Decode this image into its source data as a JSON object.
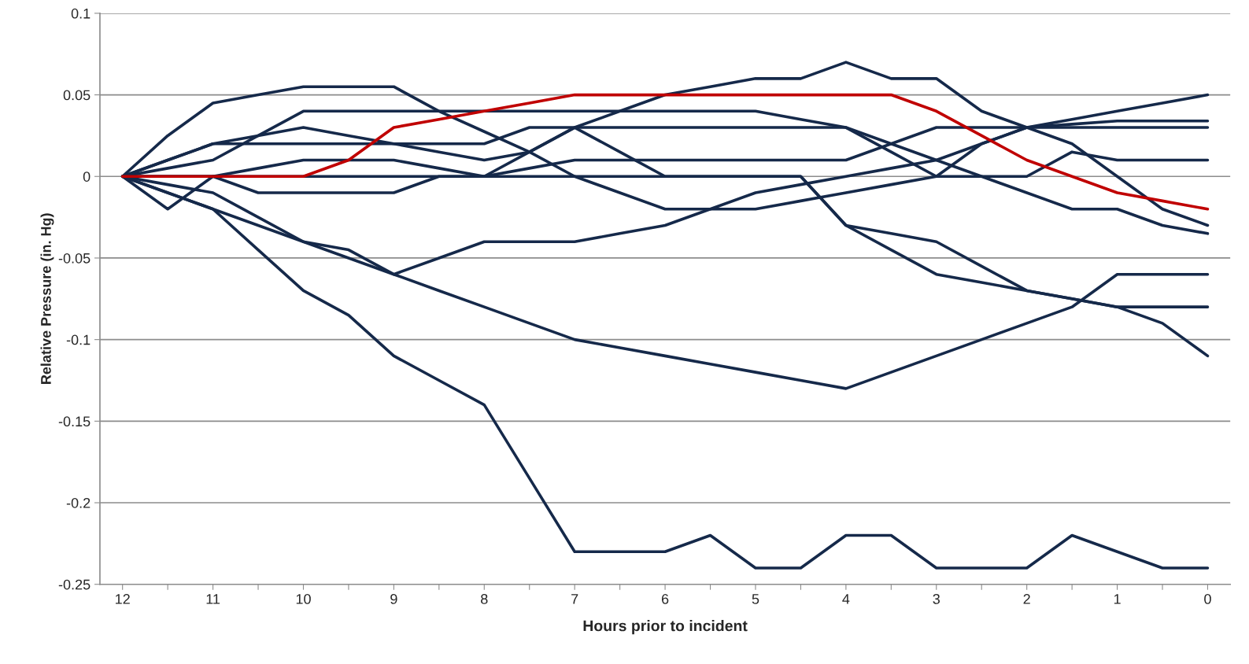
{
  "chart_data": {
    "type": "line",
    "xlabel": "Hours prior to incident",
    "ylabel": "Relative Pressure (in. Hg)",
    "categories": [
      "12",
      null,
      "11",
      null,
      "10",
      null,
      "9",
      null,
      "8",
      null,
      "7",
      null,
      "6",
      null,
      "5",
      null,
      "4",
      null,
      "3",
      null,
      "2",
      null,
      "1",
      null,
      "0"
    ],
    "ylim": [
      -0.25,
      0.1
    ],
    "yticks": [
      -0.25,
      -0.2,
      -0.15,
      -0.1,
      -0.05,
      0,
      0.05,
      0.1
    ],
    "grid": "y",
    "marker": "none",
    "line_style": "solid",
    "series": [
      {
        "color": "#15294a",
        "values": [
          0,
          -0.01,
          -0.02,
          -0.045,
          -0.07,
          -0.085,
          -0.11,
          -0.125,
          -0.14,
          -0.185,
          -0.23,
          -0.23,
          -0.23,
          -0.22,
          -0.24,
          -0.24,
          -0.22,
          -0.22,
          -0.24,
          -0.24,
          -0.24,
          -0.22,
          -0.23,
          -0.24,
          -0.24
        ]
      },
      {
        "color": "#15294a",
        "values": [
          0,
          -0.01,
          -0.02,
          -0.03,
          -0.04,
          -0.05,
          -0.06,
          -0.07,
          -0.08,
          -0.09,
          -0.1,
          -0.105,
          -0.11,
          -0.115,
          -0.12,
          -0.125,
          -0.13,
          -0.12,
          -0.11,
          -0.1,
          -0.09,
          -0.08,
          -0.06,
          -0.06,
          -0.06
        ]
      },
      {
        "color": "#15294a",
        "values": [
          0,
          0.01,
          0.02,
          0.025,
          0.03,
          0.025,
          0.02,
          0.015,
          0.01,
          0.015,
          0.03,
          0.015,
          0,
          0,
          0,
          0,
          -0.03,
          -0.045,
          -0.06,
          -0.065,
          -0.07,
          -0.075,
          -0.08,
          -0.08,
          -0.08
        ]
      },
      {
        "color": "#15294a",
        "values": [
          0,
          0,
          0,
          0,
          0,
          0,
          0,
          0,
          0,
          0,
          0,
          0,
          0,
          0,
          0,
          0,
          -0.03,
          -0.035,
          -0.04,
          -0.055,
          -0.07,
          -0.075,
          -0.08,
          -0.09,
          -0.11
        ]
      },
      {
        "color": "#15294a",
        "values": [
          0,
          0,
          0,
          -0.01,
          -0.01,
          -0.01,
          -0.01,
          0,
          0,
          0.015,
          0.03,
          0.04,
          0.05,
          0.055,
          0.06,
          0.06,
          0.07,
          0.06,
          0.06,
          0.04,
          0.03,
          0.02,
          0,
          -0.02,
          -0.03
        ]
      },
      {
        "color": "#15294a",
        "values": [
          0,
          0.005,
          0.01,
          0.025,
          0.04,
          0.04,
          0.04,
          0.04,
          0.04,
          0.04,
          0.04,
          0.04,
          0.04,
          0.04,
          0.04,
          0.035,
          0.03,
          0.02,
          0.01,
          0,
          -0.01,
          -0.02,
          -0.02,
          -0.03,
          -0.035
        ]
      },
      {
        "color": "#15294a",
        "values": [
          0,
          0.025,
          0.045,
          0.05,
          0.055,
          0.055,
          0.055,
          0.04,
          0.0275,
          0.015,
          0,
          -0.01,
          -0.02,
          -0.02,
          -0.02,
          -0.015,
          -0.01,
          -0.005,
          0,
          0,
          0,
          0.015,
          0.01,
          0.01,
          0.01
        ]
      },
      {
        "color": "#15294a",
        "values": [
          0,
          -0.005,
          -0.01,
          -0.025,
          -0.04,
          -0.045,
          -0.06,
          -0.05,
          -0.04,
          -0.04,
          -0.04,
          -0.035,
          -0.03,
          -0.02,
          -0.01,
          -0.005,
          0,
          0.005,
          0.01,
          0.02,
          0.03,
          0.032,
          0.034,
          0.034,
          0.034
        ]
      },
      {
        "color": "#15294a",
        "values": [
          0,
          0.01,
          0.02,
          0.02,
          0.02,
          0.02,
          0.02,
          0.02,
          0.02,
          0.03,
          0.03,
          0.03,
          0.03,
          0.03,
          0.03,
          0.03,
          0.03,
          0.015,
          0,
          0.02,
          0.03,
          0.035,
          0.04,
          0.045,
          0.05
        ]
      },
      {
        "color": "#15294a",
        "values": [
          0,
          -0.02,
          0,
          0.005,
          0.01,
          0.01,
          0.01,
          0.005,
          0,
          0.005,
          0.01,
          0.01,
          0.01,
          0.01,
          0.01,
          0.01,
          0.01,
          0.02,
          0.03,
          0.03,
          0.03,
          0.03,
          0.03,
          0.03,
          0.03
        ]
      },
      {
        "color": "#c00000",
        "values": [
          0,
          0,
          0,
          0,
          0,
          0.01,
          0.03,
          0.035,
          0.04,
          0.045,
          0.05,
          0.05,
          0.05,
          0.05,
          0.05,
          0.05,
          0.05,
          0.05,
          0.04,
          0.025,
          0.01,
          0,
          -0.01,
          -0.015,
          -0.02
        ]
      }
    ]
  }
}
